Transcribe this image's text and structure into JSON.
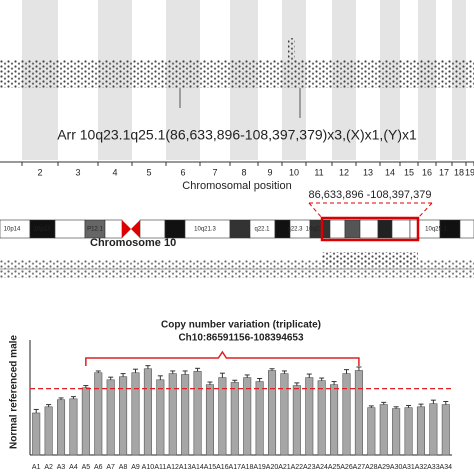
{
  "genome_panel": {
    "annotation": "Arr 10q23.1q25.1(86,633,896-108,397,379)x3,(X)x1,(Y)x1",
    "chromosomes": [
      "2",
      "3",
      "4",
      "5",
      "6",
      "7",
      "8",
      "9",
      "10",
      "11",
      "12",
      "13",
      "14",
      "15",
      "16",
      "17",
      "18",
      "19"
    ],
    "xlabel": "Chromosomal position"
  },
  "ideogram": {
    "coordinates": "86,633,896 -108,397,379",
    "title": "Chromosome 10",
    "bands": [
      "10p14",
      "10p13",
      "P12.1",
      "10q21.3",
      "q22.1",
      "q22.3",
      "10q23",
      "10q25.1"
    ]
  },
  "chart_data": {
    "type": "bar",
    "title": "Copy number variation (triplicate)",
    "subtitle": "Ch10:86591156-108394653",
    "ylabel": "Normal referenced male",
    "categories": [
      "A1",
      "A2",
      "A3",
      "A4",
      "A5",
      "A6",
      "A7",
      "A8",
      "A9",
      "A10",
      "A11",
      "A12",
      "A13",
      "A14",
      "A15",
      "A16",
      "A17",
      "A18",
      "A19",
      "A20",
      "A21",
      "A22",
      "A23",
      "A24",
      "A25",
      "A26",
      "A27",
      "A28",
      "A29",
      "A30",
      "A31",
      "A32",
      "A33",
      "A34"
    ],
    "values": [
      0.95,
      1.09,
      1.25,
      1.27,
      1.52,
      1.86,
      1.7,
      1.77,
      1.86,
      1.95,
      1.7,
      1.84,
      1.82,
      1.89,
      1.59,
      1.75,
      1.64,
      1.75,
      1.66,
      1.91,
      1.84,
      1.57,
      1.75,
      1.68,
      1.59,
      1.84,
      1.91,
      1.07,
      1.14,
      1.05,
      1.07,
      1.09,
      1.16,
      1.14
    ],
    "errors": [
      0.08,
      0.05,
      0.04,
      0.05,
      0.05,
      0.04,
      0.06,
      0.07,
      0.08,
      0.07,
      0.09,
      0.06,
      0.08,
      0.07,
      0.06,
      0.1,
      0.05,
      0.06,
      0.07,
      0.04,
      0.06,
      0.06,
      0.08,
      0.06,
      0.07,
      0.09,
      0.08,
      0.04,
      0.05,
      0.04,
      0.05,
      0.06,
      0.08,
      0.07
    ],
    "color": "#a6a6a6",
    "ylim": [
      0,
      2.6
    ],
    "reference_line": 1.5,
    "reference_color": "#e02020",
    "bracket": [
      4,
      26
    ]
  }
}
